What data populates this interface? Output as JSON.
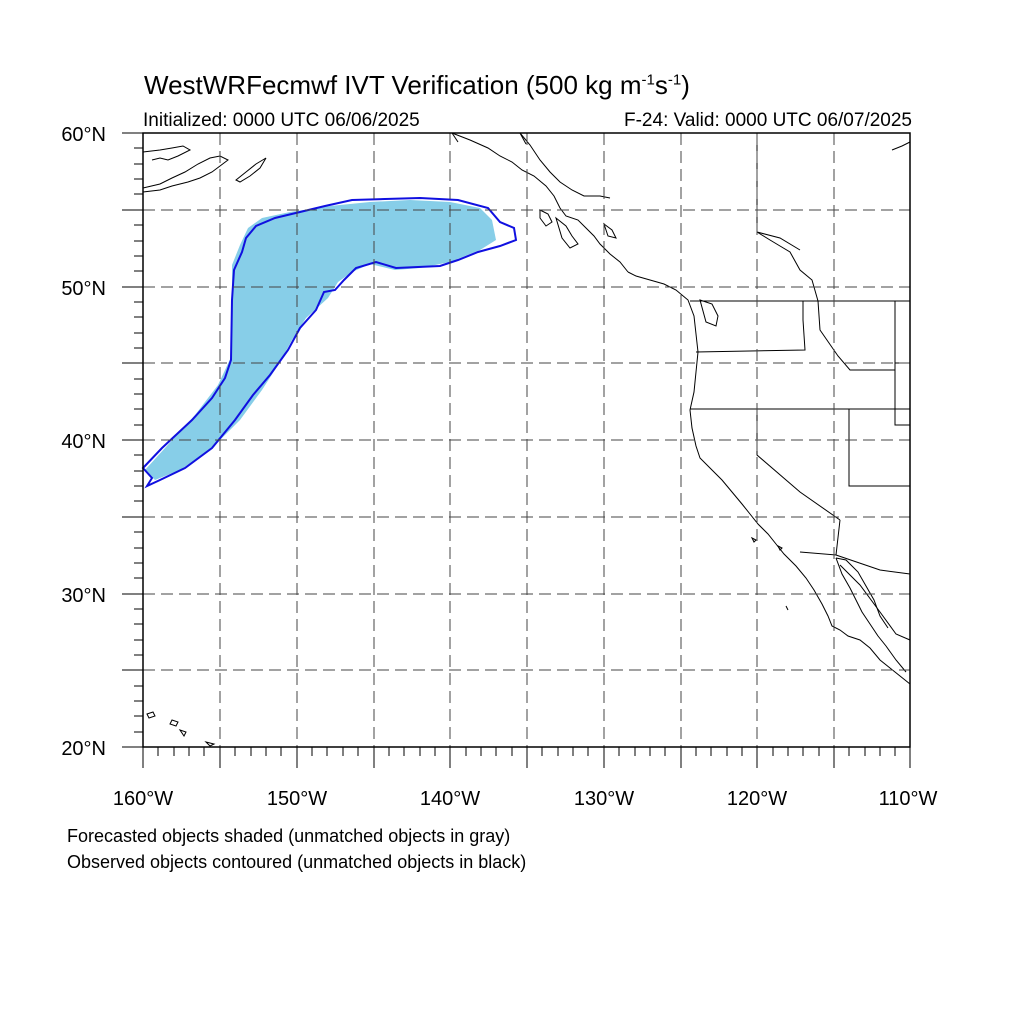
{
  "header": {
    "title_main": "WestWRFecmwf IVT Verification (500 kg m",
    "title_exp1": "-1",
    "title_mid": "s",
    "title_exp2": "-1",
    "title_end": ")",
    "initialized": "Initialized: 0000 UTC 06/06/2025",
    "valid": "F-24: Valid: 0000 UTC 06/07/2025"
  },
  "map": {
    "lat_labels": [
      "60°N",
      "50°N",
      "40°N",
      "30°N",
      "20°N"
    ],
    "lon_labels": [
      "160°W",
      "150°W",
      "140°W",
      "130°W",
      "120°W",
      "110°W"
    ],
    "lat_range": [
      20,
      60
    ],
    "lon_range": [
      -160,
      -110
    ],
    "grid": "dashed every 5°",
    "colors": {
      "forecast_fill": "#87CEE8",
      "observed_contour": "#1010E0",
      "coastline": "#000000",
      "grid": "#555555"
    }
  },
  "footer": {
    "line1": "Forecasted objects shaded (unmatched objects in gray)",
    "line2": "Observed objects contoured (unmatched objects in black)"
  }
}
